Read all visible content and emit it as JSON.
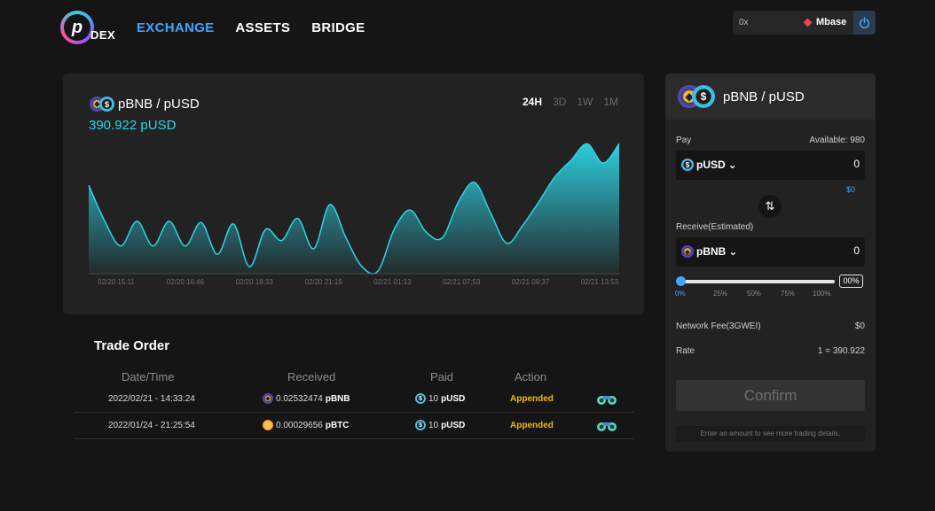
{
  "header": {
    "logo_letter": "p",
    "logo_text": "DEX",
    "nav": [
      {
        "label": "EXCHANGE",
        "active": true
      },
      {
        "label": "ASSETS",
        "active": false
      },
      {
        "label": "BRIDGE",
        "active": false
      }
    ],
    "wallet_address": "0x",
    "network_name": "Mbase",
    "power_icon": "power-icon"
  },
  "chart": {
    "pair": "pBNB / pUSD",
    "price": "390.922 pUSD",
    "ranges": [
      {
        "label": "24H",
        "active": true
      },
      {
        "label": "3D",
        "active": false
      },
      {
        "label": "1W",
        "active": false
      },
      {
        "label": "1M",
        "active": false
      }
    ]
  },
  "chart_data": {
    "type": "area",
    "x": [
      "02/20 15:11",
      "02/20 16:46",
      "02/20 18:33",
      "02/20 21:19",
      "02/21 01:13",
      "02/21 07:53",
      "02/21 09:37",
      "02/21 13:53"
    ],
    "points": [
      0.64,
      0.38,
      0.2,
      0.38,
      0.2,
      0.38,
      0.2,
      0.37,
      0.14,
      0.36,
      0.05,
      0.32,
      0.24,
      0.4,
      0.18,
      0.5,
      0.26,
      0.05,
      0.02,
      0.32,
      0.46,
      0.3,
      0.26,
      0.52,
      0.66,
      0.44,
      0.22,
      0.35,
      0.52,
      0.7,
      0.82,
      0.94,
      0.8,
      0.94
    ],
    "series_color": "#2dd5e6",
    "grid": false
  },
  "orders": {
    "title": "Trade Order",
    "columns": [
      "Date/Time",
      "Received",
      "Paid",
      "Action"
    ],
    "rows": [
      {
        "datetime": "2022/02/21 - 14:33:24",
        "received_amount": "0.02532474",
        "received_token": "pBNB",
        "received_icon": "pbnb-coin-icon",
        "paid_amount": "10",
        "paid_token": "pUSD",
        "action": "Appended"
      },
      {
        "datetime": "2022/01/24 - 21:25:54",
        "received_amount": "0.00029656",
        "received_token": "pBTC",
        "received_icon": "pbtc-coin-icon",
        "paid_amount": "10",
        "paid_token": "pUSD",
        "action": "Appended"
      }
    ]
  },
  "swap": {
    "pair": "pBNB / pUSD",
    "pay_label": "Pay",
    "available": "Available: 980",
    "pay_token": "pUSD",
    "pay_amount": "0",
    "pay_usd": "$0",
    "receive_label": "Receive(Estimated)",
    "receive_token": "pBNB",
    "receive_amount": "0",
    "percent": "00%",
    "percent_value": 0,
    "ticks": [
      "0%",
      "25%",
      "50%",
      "75%",
      "100%"
    ],
    "fee_label": "Network Fee(3GWEI)",
    "fee_value": "$0",
    "rate_label": "Rate",
    "rate_value": "1 = 390.922",
    "confirm_label": "Confirm",
    "hint": "Enter an amount to see more trading details."
  },
  "colors": {
    "accent": "#3ea6ff",
    "chart": "#2dd5e6",
    "status": "#f0b90b",
    "panel": "#222222",
    "background": "#151515"
  }
}
